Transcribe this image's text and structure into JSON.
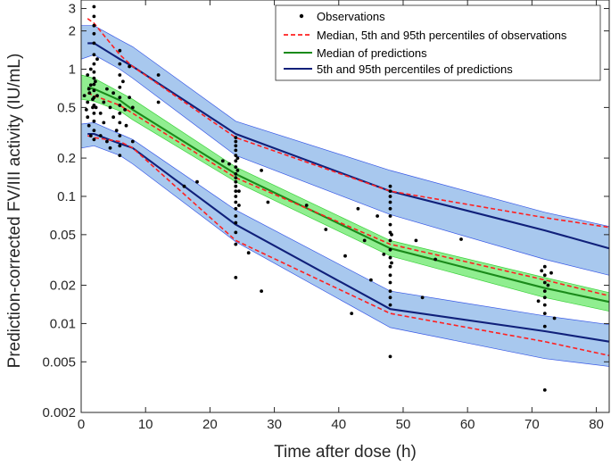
{
  "chart_data": {
    "type": "line",
    "xlabel": "Time after dose (h)",
    "ylabel": "Prediction-corrected FV/III activity (IU/mL)",
    "xlim": [
      0,
      82
    ],
    "ylim": [
      0.002,
      3.5
    ],
    "yscale": "log",
    "x_ticks": [
      0,
      10,
      20,
      30,
      40,
      50,
      60,
      70,
      80
    ],
    "y_ticks": [
      0.002,
      0.005,
      0.01,
      0.02,
      0.05,
      0.1,
      0.2,
      0.5,
      1,
      2,
      3
    ],
    "y_tick_labels": [
      "0.002",
      "0.005",
      "0.01",
      "0.02",
      "0.05",
      "0.1",
      "0.2",
      "0.5",
      "1",
      "2",
      "3"
    ],
    "legend": {
      "position": "top-right",
      "entries": [
        "Observations",
        "Median, 5th and 95th percentiles of observations",
        "Median of predictions",
        "5th and 95th percentiles of predictions"
      ]
    },
    "colors": {
      "ci_band": "#a8c8ee",
      "ci_band_edge": "#3a5ae6",
      "median_band": "#90ee90",
      "median_band_edge": "#3bd13b",
      "pred_median_line": "#1a8a1a",
      "pred_pct_line": "#10207a",
      "obs_line": "#ff2020",
      "point": "#000000"
    },
    "bands": {
      "upper_ci": {
        "x": [
          0,
          2,
          6,
          8,
          24,
          48,
          72,
          82
        ],
        "lo": [
          1.2,
          1.3,
          1.0,
          0.85,
          0.21,
          0.072,
          0.032,
          0.024
        ],
        "hi": [
          2.2,
          2.2,
          1.7,
          1.5,
          0.39,
          0.16,
          0.075,
          0.058
        ]
      },
      "lower_ci": {
        "x": [
          0,
          2,
          6,
          8,
          24,
          48,
          72,
          82
        ],
        "lo": [
          0.24,
          0.25,
          0.21,
          0.18,
          0.044,
          0.0093,
          0.0053,
          0.0046
        ],
        "hi": [
          0.37,
          0.38,
          0.31,
          0.28,
          0.078,
          0.018,
          0.0115,
          0.0098
        ]
      },
      "median_ci": {
        "x": [
          0,
          2,
          6,
          8,
          24,
          48,
          72,
          82
        ],
        "lo": [
          0.58,
          0.56,
          0.47,
          0.4,
          0.13,
          0.034,
          0.016,
          0.0125
        ],
        "hi": [
          0.9,
          0.85,
          0.66,
          0.58,
          0.17,
          0.045,
          0.023,
          0.0175
        ]
      }
    },
    "series": [
      {
        "name": "5th and 95th percentiles of predictions",
        "role": "pred-95th",
        "x": [
          1,
          2,
          6,
          8,
          24,
          48,
          72,
          82
        ],
        "y": [
          1.6,
          1.6,
          1.2,
          1.05,
          0.31,
          0.11,
          0.054,
          0.039
        ]
      },
      {
        "name": "Median of predictions",
        "role": "pred-median",
        "x": [
          1,
          2,
          6,
          8,
          24,
          48,
          72,
          82
        ],
        "y": [
          0.72,
          0.7,
          0.57,
          0.48,
          0.15,
          0.039,
          0.019,
          0.0148
        ]
      },
      {
        "name": "5th and 95th percentiles of predictions",
        "role": "pred-5th",
        "x": [
          1,
          2,
          6,
          8,
          24,
          48,
          72,
          82
        ],
        "y": [
          0.31,
          0.31,
          0.26,
          0.24,
          0.06,
          0.013,
          0.0087,
          0.0072
        ]
      },
      {
        "name": "Median, 5th and 95th percentiles of observations",
        "role": "obs-95th",
        "x": [
          1,
          2,
          6,
          8,
          24,
          48,
          72,
          82
        ],
        "y": [
          2.5,
          2.3,
          1.3,
          1.05,
          0.29,
          0.11,
          0.068,
          0.057
        ]
      },
      {
        "name": "Median, 5th and 95th percentiles of observations",
        "role": "obs-median",
        "x": [
          1,
          2,
          6,
          8,
          24,
          48,
          72,
          82
        ],
        "y": [
          0.65,
          0.62,
          0.52,
          0.45,
          0.14,
          0.042,
          0.022,
          0.0165
        ]
      },
      {
        "name": "Median, 5th and 95th percentiles of observations",
        "role": "obs-5th",
        "x": [
          1,
          2,
          6,
          8,
          24,
          48,
          72,
          82
        ],
        "y": [
          0.3,
          0.29,
          0.27,
          0.24,
          0.045,
          0.012,
          0.0072,
          0.0056
        ]
      }
    ],
    "observations": [
      [
        0.5,
        0.62
      ],
      [
        0.8,
        0.48
      ],
      [
        1.0,
        0.9
      ],
      [
        1.0,
        0.55
      ],
      [
        1.0,
        0.42
      ],
      [
        1.2,
        0.36
      ],
      [
        1.2,
        0.7
      ],
      [
        1.3,
        0.65
      ],
      [
        1.5,
        0.3
      ],
      [
        1.5,
        1.0
      ],
      [
        1.5,
        0.75
      ],
      [
        1.8,
        0.5
      ],
      [
        1.8,
        0.58
      ],
      [
        2.0,
        3.1
      ],
      [
        2.0,
        2.6
      ],
      [
        2.0,
        2.2
      ],
      [
        2.0,
        1.9
      ],
      [
        2.0,
        1.6
      ],
      [
        2.0,
        1.3
      ],
      [
        2.0,
        1.1
      ],
      [
        2.0,
        0.95
      ],
      [
        2.0,
        0.85
      ],
      [
        2.0,
        0.76
      ],
      [
        2.0,
        0.68
      ],
      [
        2.0,
        0.6
      ],
      [
        2.0,
        0.52
      ],
      [
        2.0,
        0.45
      ],
      [
        2.0,
        0.39
      ],
      [
        2.0,
        0.33
      ],
      [
        2.0,
        0.28
      ],
      [
        2.2,
        0.8
      ],
      [
        2.3,
        0.5
      ],
      [
        2.5,
        1.2
      ],
      [
        2.5,
        0.62
      ],
      [
        3.0,
        0.45
      ],
      [
        3.0,
        0.3
      ],
      [
        3.5,
        0.55
      ],
      [
        3.5,
        0.38
      ],
      [
        4.0,
        0.7
      ],
      [
        4.0,
        0.27
      ],
      [
        4.5,
        0.5
      ],
      [
        4.5,
        0.24
      ],
      [
        5.0,
        0.42
      ],
      [
        5.0,
        0.65
      ],
      [
        5.5,
        0.33
      ],
      [
        6.0,
        1.4
      ],
      [
        6.0,
        1.1
      ],
      [
        6.0,
        0.9
      ],
      [
        6.0,
        0.72
      ],
      [
        6.0,
        0.6
      ],
      [
        6.0,
        0.52
      ],
      [
        6.0,
        0.45
      ],
      [
        6.0,
        0.38
      ],
      [
        6.0,
        0.3
      ],
      [
        6.0,
        0.25
      ],
      [
        6.0,
        0.21
      ],
      [
        6.5,
        0.8
      ],
      [
        6.8,
        0.48
      ],
      [
        7.0,
        0.36
      ],
      [
        7.5,
        1.05
      ],
      [
        7.5,
        0.6
      ],
      [
        8.0,
        0.5
      ],
      [
        8.0,
        0.27
      ],
      [
        12.0,
        0.9
      ],
      [
        12.0,
        0.55
      ],
      [
        16.0,
        0.12
      ],
      [
        18.0,
        0.13
      ],
      [
        22.0,
        0.19
      ],
      [
        23.0,
        0.18
      ],
      [
        24.0,
        0.29
      ],
      [
        24.0,
        0.27
      ],
      [
        24.0,
        0.25
      ],
      [
        24.0,
        0.23
      ],
      [
        24.0,
        0.21
      ],
      [
        24.0,
        0.19
      ],
      [
        24.0,
        0.17
      ],
      [
        24.0,
        0.15
      ],
      [
        24.0,
        0.14
      ],
      [
        24.0,
        0.13
      ],
      [
        24.0,
        0.12
      ],
      [
        24.0,
        0.11
      ],
      [
        24.0,
        0.1
      ],
      [
        24.0,
        0.09
      ],
      [
        24.0,
        0.08
      ],
      [
        24.0,
        0.07
      ],
      [
        24.0,
        0.062
      ],
      [
        24.0,
        0.052
      ],
      [
        24.0,
        0.042
      ],
      [
        24.0,
        0.023
      ],
      [
        24.3,
        0.16
      ],
      [
        24.3,
        0.2
      ],
      [
        24.5,
        0.11
      ],
      [
        24.5,
        0.085
      ],
      [
        26.0,
        0.036
      ],
      [
        28.0,
        0.018
      ],
      [
        28.0,
        0.16
      ],
      [
        29.0,
        0.09
      ],
      [
        35.0,
        0.085
      ],
      [
        38.0,
        0.055
      ],
      [
        41.0,
        0.034
      ],
      [
        42.0,
        0.012
      ],
      [
        43.0,
        0.08
      ],
      [
        44.0,
        0.045
      ],
      [
        45.0,
        0.022
      ],
      [
        46.0,
        0.07
      ],
      [
        47.0,
        0.035
      ],
      [
        48.0,
        0.12
      ],
      [
        48.0,
        0.11
      ],
      [
        48.0,
        0.1
      ],
      [
        48.0,
        0.09
      ],
      [
        48.0,
        0.08
      ],
      [
        48.0,
        0.07
      ],
      [
        48.0,
        0.06
      ],
      [
        48.0,
        0.052
      ],
      [
        48.0,
        0.045
      ],
      [
        48.0,
        0.038
      ],
      [
        48.0,
        0.033
      ],
      [
        48.0,
        0.028
      ],
      [
        48.0,
        0.024
      ],
      [
        48.0,
        0.021
      ],
      [
        48.0,
        0.018
      ],
      [
        48.0,
        0.016
      ],
      [
        48.0,
        0.014
      ],
      [
        48.0,
        0.0055
      ],
      [
        48.2,
        0.05
      ],
      [
        48.2,
        0.03
      ],
      [
        52.0,
        0.045
      ],
      [
        53.0,
        0.016
      ],
      [
        55.0,
        0.032
      ],
      [
        59.0,
        0.046
      ],
      [
        71.0,
        0.015
      ],
      [
        71.5,
        0.026
      ],
      [
        72.0,
        0.028
      ],
      [
        72.0,
        0.024
      ],
      [
        72.0,
        0.021
      ],
      [
        72.0,
        0.018
      ],
      [
        72.0,
        0.016
      ],
      [
        72.0,
        0.014
      ],
      [
        72.0,
        0.012
      ],
      [
        72.0,
        0.0095
      ],
      [
        72.0,
        0.003
      ],
      [
        72.5,
        0.02
      ],
      [
        73.0,
        0.025
      ],
      [
        73.5,
        0.011
      ]
    ]
  }
}
